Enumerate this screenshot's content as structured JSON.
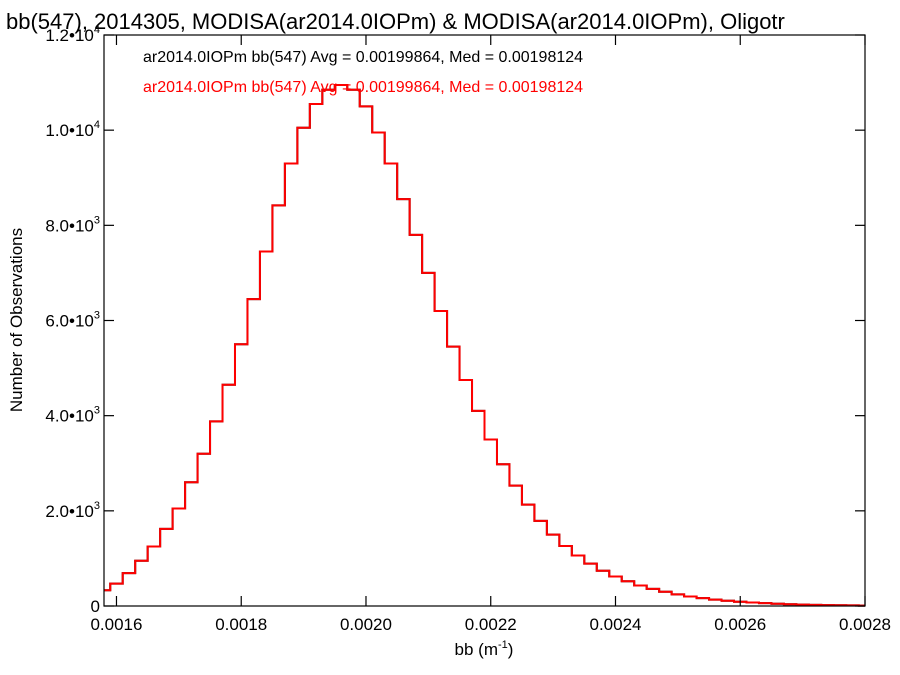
{
  "chart_data": {
    "type": "line",
    "title": "bb(547), 2014305, MODISA(ar2014.0IOPm) & MODISA(ar2014.0IOPm), Oligotr",
    "xlabel": {
      "base": "bb (m",
      "sup": "-1",
      "close": ")"
    },
    "ylabel": "Number of Observations",
    "xlim": [
      0.00158,
      0.0028
    ],
    "ylim": [
      0,
      12000
    ],
    "grid": false,
    "legend_position": "top-left",
    "x_ticks": [
      {
        "value": 0.0016,
        "label": "0.0016"
      },
      {
        "value": 0.0018,
        "label": "0.0018"
      },
      {
        "value": 0.002,
        "label": "0.0020"
      },
      {
        "value": 0.0022,
        "label": "0.0022"
      },
      {
        "value": 0.0024,
        "label": "0.0024"
      },
      {
        "value": 0.0026,
        "label": "0.0026"
      },
      {
        "value": 0.0028,
        "label": "0.0028"
      }
    ],
    "y_ticks": [
      {
        "value": 0,
        "mant": "0",
        "exp": ""
      },
      {
        "value": 2000,
        "mant": "2.0•10",
        "exp": "3"
      },
      {
        "value": 4000,
        "mant": "4.0•10",
        "exp": "3"
      },
      {
        "value": 6000,
        "mant": "6.0•10",
        "exp": "3"
      },
      {
        "value": 8000,
        "mant": "8.0•10",
        "exp": "3"
      },
      {
        "value": 10000,
        "mant": "1.0•10",
        "exp": "4"
      },
      {
        "value": 12000,
        "mant": "1.2•10",
        "exp": "4"
      }
    ],
    "series": [
      {
        "name": "ar2014.0IOPm bb(547) Avg = 0.00199864, Med = 0.00198124",
        "color": "#000000",
        "x": [
          0.00158,
          0.0016,
          0.00162,
          0.00164,
          0.00166,
          0.00168,
          0.0017,
          0.00172,
          0.00174,
          0.00176,
          0.00178,
          0.0018,
          0.00182,
          0.00184,
          0.00186,
          0.00188,
          0.0019,
          0.00192,
          0.00194,
          0.00196,
          0.00198,
          0.002,
          0.00202,
          0.00204,
          0.00206,
          0.00208,
          0.0021,
          0.00212,
          0.00214,
          0.00216,
          0.00218,
          0.0022,
          0.00222,
          0.00224,
          0.00226,
          0.00228,
          0.0023,
          0.00232,
          0.00234,
          0.00236,
          0.00238,
          0.0024,
          0.00242,
          0.00244,
          0.00246,
          0.00248,
          0.0025,
          0.00252,
          0.00254,
          0.00256,
          0.00258,
          0.0026,
          0.00262,
          0.00264,
          0.00266,
          0.00268,
          0.0027,
          0.00272,
          0.00274,
          0.00276,
          0.00278,
          0.0028
        ],
        "y": [
          330,
          470,
          690,
          950,
          1250,
          1620,
          2050,
          2600,
          3200,
          3880,
          4650,
          5500,
          6450,
          7450,
          8420,
          9300,
          10050,
          10550,
          10850,
          10950,
          10850,
          10500,
          9950,
          9300,
          8550,
          7800,
          7000,
          6200,
          5450,
          4750,
          4100,
          3500,
          2980,
          2530,
          2130,
          1790,
          1500,
          1260,
          1060,
          890,
          740,
          620,
          520,
          430,
          360,
          300,
          245,
          200,
          165,
          135,
          110,
          90,
          73,
          60,
          48,
          38,
          30,
          24,
          19,
          15,
          12,
          9
        ]
      },
      {
        "name": "ar2014.0IOPm bb(547) Avg = 0.00199864, Med = 0.00198124",
        "color": "#ff0000",
        "x": [
          0.00158,
          0.0016,
          0.00162,
          0.00164,
          0.00166,
          0.00168,
          0.0017,
          0.00172,
          0.00174,
          0.00176,
          0.00178,
          0.0018,
          0.00182,
          0.00184,
          0.00186,
          0.00188,
          0.0019,
          0.00192,
          0.00194,
          0.00196,
          0.00198,
          0.002,
          0.00202,
          0.00204,
          0.00206,
          0.00208,
          0.0021,
          0.00212,
          0.00214,
          0.00216,
          0.00218,
          0.0022,
          0.00222,
          0.00224,
          0.00226,
          0.00228,
          0.0023,
          0.00232,
          0.00234,
          0.00236,
          0.00238,
          0.0024,
          0.00242,
          0.00244,
          0.00246,
          0.00248,
          0.0025,
          0.00252,
          0.00254,
          0.00256,
          0.00258,
          0.0026,
          0.00262,
          0.00264,
          0.00266,
          0.00268,
          0.0027,
          0.00272,
          0.00274,
          0.00276,
          0.00278,
          0.0028
        ],
        "y": [
          330,
          470,
          690,
          950,
          1250,
          1620,
          2050,
          2600,
          3200,
          3880,
          4650,
          5500,
          6450,
          7450,
          8420,
          9300,
          10050,
          10550,
          10850,
          10950,
          10850,
          10500,
          9950,
          9300,
          8550,
          7800,
          7000,
          6200,
          5450,
          4750,
          4100,
          3500,
          2980,
          2530,
          2130,
          1790,
          1500,
          1260,
          1060,
          890,
          740,
          620,
          520,
          430,
          360,
          300,
          245,
          200,
          165,
          135,
          110,
          90,
          73,
          60,
          48,
          38,
          30,
          24,
          19,
          15,
          12,
          9
        ]
      }
    ]
  }
}
